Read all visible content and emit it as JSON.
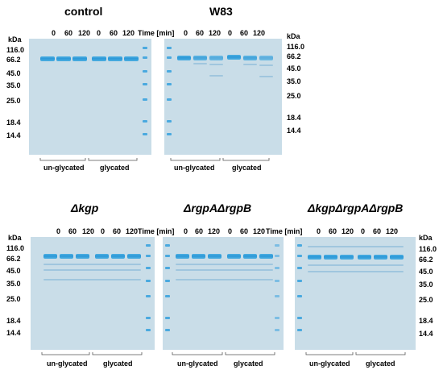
{
  "panels": [
    {
      "id": "control",
      "title": "control",
      "title_italic": false
    },
    {
      "id": "w83",
      "title": "W83",
      "title_italic": false
    },
    {
      "id": "kgp",
      "title": "Δkgp",
      "title_italic": true
    },
    {
      "id": "rgpab",
      "title": "ΔrgpAΔrgpB",
      "title_italic": true
    },
    {
      "id": "triple",
      "title": "ΔkgpΔrgpAΔrgpB",
      "title_italic": true
    }
  ],
  "time_labels": [
    "0",
    "60",
    "120",
    "0",
    "60",
    "120"
  ],
  "time_unit": "Time [min]",
  "kda_label": "kDa",
  "markers": [
    "116.0",
    "66.2",
    "45.0",
    "35.0",
    "25.0",
    "18.4",
    "14.4"
  ],
  "groups": [
    "un-glycated",
    "glycated"
  ],
  "colors": {
    "gel": "#c9dde8",
    "band": "#2b98d8",
    "ladder": "#4aa9df"
  }
}
